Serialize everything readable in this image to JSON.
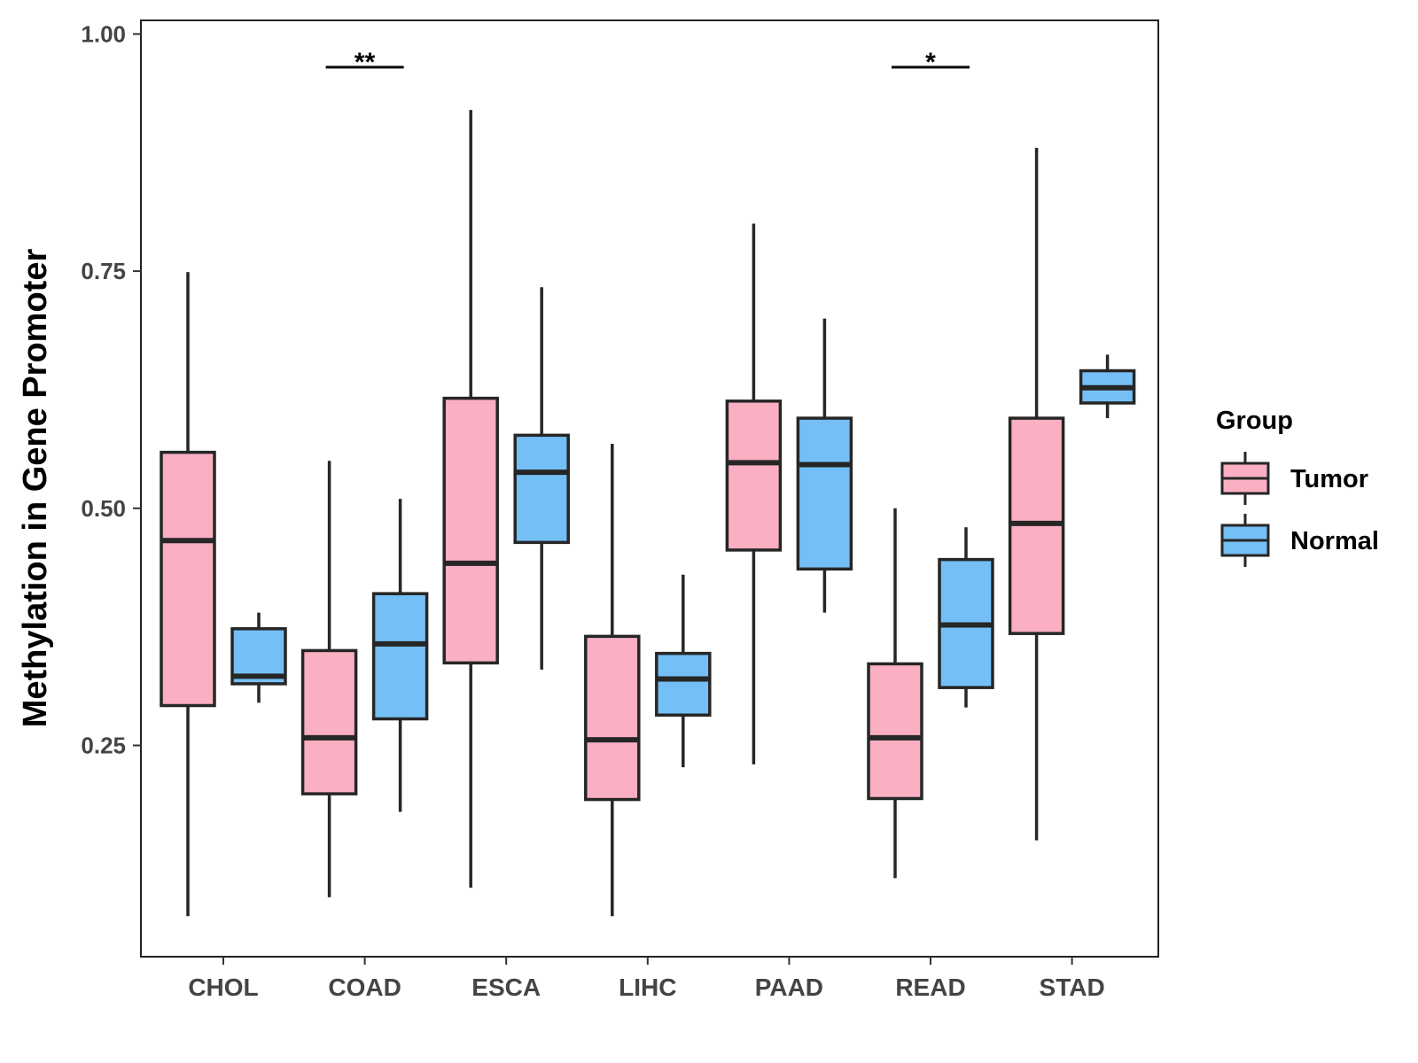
{
  "chart_data": {
    "type": "boxplot",
    "title": "",
    "xlabel": "",
    "ylabel": "Methylation in Gene Promoter",
    "ylim": [
      0.04,
      1.03
    ],
    "yticks": [
      "0.25",
      "0.50",
      "0.75",
      "1.00"
    ],
    "ytick_values": [
      0.25,
      0.5,
      0.75,
      1.0
    ],
    "categories": [
      "CHOL",
      "COAD",
      "ESCA",
      "LIHC",
      "PAAD",
      "READ",
      "STAD"
    ],
    "legend": {
      "title": "Group",
      "position": "right",
      "entries": [
        {
          "name": "Tumor",
          "color": "#FAAFC2"
        },
        {
          "name": "Normal",
          "color": "#74BFF5"
        }
      ]
    },
    "series": [
      {
        "name": "Tumor",
        "color": "#FAAFC2",
        "boxes": [
          {
            "category": "CHOL",
            "min": 0.07,
            "q1": 0.292,
            "median": 0.466,
            "q3": 0.559,
            "max": 0.749
          },
          {
            "category": "COAD",
            "min": 0.09,
            "q1": 0.199,
            "median": 0.258,
            "q3": 0.35,
            "max": 0.55
          },
          {
            "category": "ESCA",
            "min": 0.1,
            "q1": 0.337,
            "median": 0.442,
            "q3": 0.616,
            "max": 0.92
          },
          {
            "category": "LIHC",
            "min": 0.07,
            "q1": 0.193,
            "median": 0.256,
            "q3": 0.365,
            "max": 0.568
          },
          {
            "category": "PAAD",
            "min": 0.23,
            "q1": 0.456,
            "median": 0.548,
            "q3": 0.613,
            "max": 0.8
          },
          {
            "category": "READ",
            "min": 0.11,
            "q1": 0.194,
            "median": 0.258,
            "q3": 0.336,
            "max": 0.5
          },
          {
            "category": "STAD",
            "min": 0.15,
            "q1": 0.368,
            "median": 0.484,
            "q3": 0.595,
            "max": 0.88
          }
        ]
      },
      {
        "name": "Normal",
        "color": "#74BFF5",
        "boxes": [
          {
            "category": "CHOL",
            "min": 0.295,
            "q1": 0.315,
            "median": 0.323,
            "q3": 0.373,
            "max": 0.39
          },
          {
            "category": "COAD",
            "min": 0.18,
            "q1": 0.278,
            "median": 0.357,
            "q3": 0.41,
            "max": 0.51
          },
          {
            "category": "ESCA",
            "min": 0.33,
            "q1": 0.464,
            "median": 0.538,
            "q3": 0.577,
            "max": 0.733
          },
          {
            "category": "LIHC",
            "min": 0.227,
            "q1": 0.282,
            "median": 0.32,
            "q3": 0.347,
            "max": 0.43
          },
          {
            "category": "PAAD",
            "min": 0.39,
            "q1": 0.436,
            "median": 0.546,
            "q3": 0.595,
            "max": 0.7
          },
          {
            "category": "READ",
            "min": 0.29,
            "q1": 0.311,
            "median": 0.377,
            "q3": 0.446,
            "max": 0.48
          },
          {
            "category": "STAD",
            "min": 0.595,
            "q1": 0.611,
            "median": 0.627,
            "q3": 0.645,
            "max": 0.662
          }
        ]
      }
    ],
    "annotations": [
      {
        "category": "COAD",
        "label": "**",
        "y": 0.965
      },
      {
        "category": "READ",
        "label": "*",
        "y": 0.965
      }
    ]
  }
}
